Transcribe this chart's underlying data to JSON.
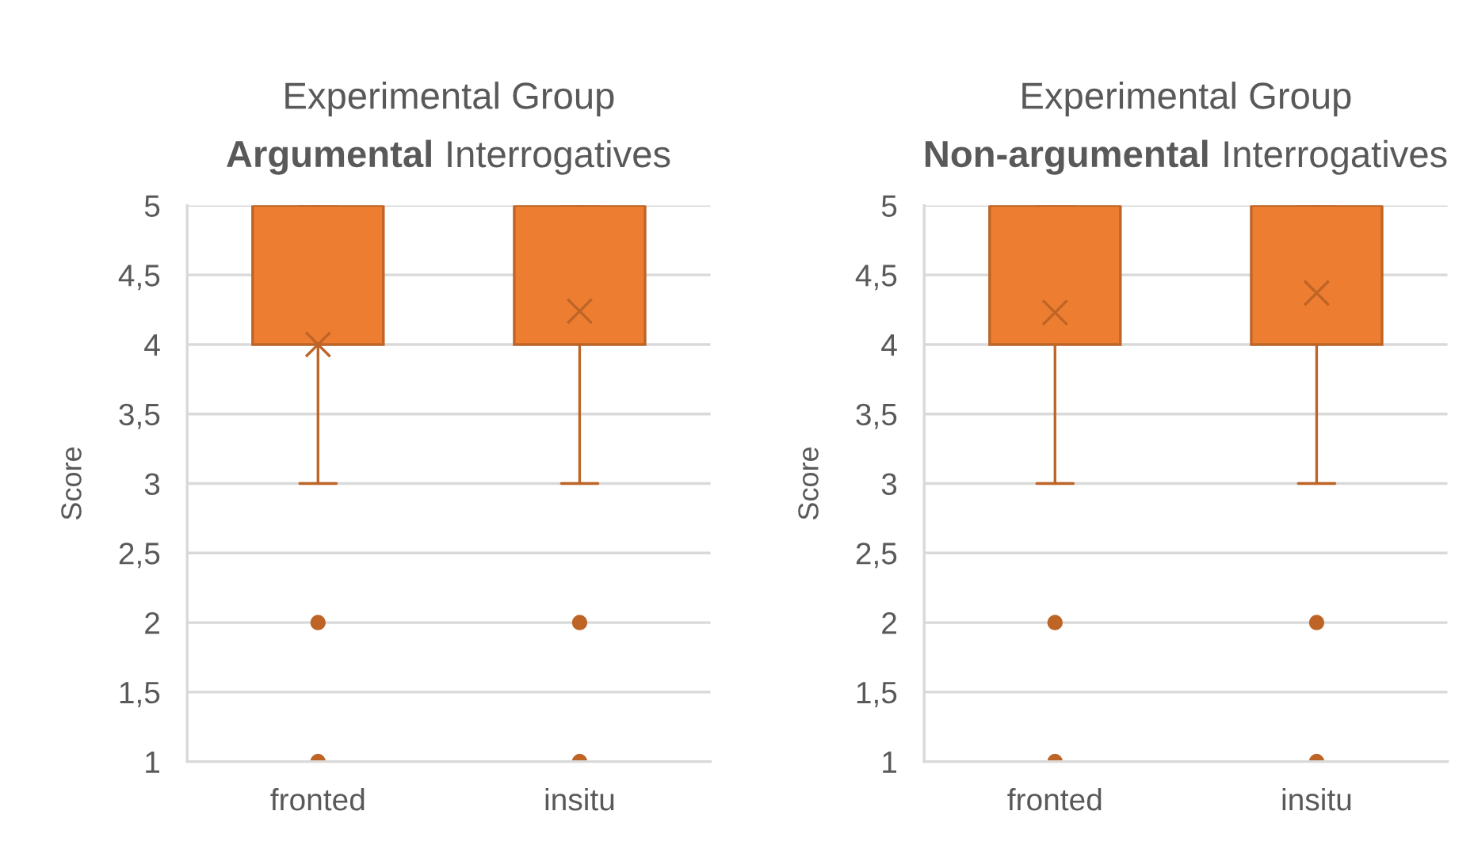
{
  "chart_data": [
    {
      "type": "box",
      "title": "Experimental Group",
      "subtitle": "Argumental Interrogatives",
      "ylabel": "Score",
      "categories": [
        "fronted",
        "insitu"
      ],
      "color": "#ed7d31",
      "boxes": [
        {
          "low": 3,
          "q1": 4,
          "median": 5,
          "q3": 5,
          "high": 5,
          "mean": 4.0,
          "outliers": [
            2,
            1
          ]
        },
        {
          "low": 3,
          "q1": 4,
          "median": 5,
          "q3": 5,
          "high": 5,
          "mean": 4.24,
          "outliers": [
            2,
            1
          ]
        }
      ],
      "ylim": [
        1,
        5
      ],
      "yticks": [
        1,
        {
          "value": 1.5,
          "label": "1,5"
        },
        2,
        {
          "value": 2.5,
          "label": "2,5"
        },
        3,
        {
          "value": 3.5,
          "label": "3,5"
        },
        4,
        {
          "value": 4.5,
          "label": "4,5"
        },
        5
      ],
      "grid": "y",
      "marker": "circle"
    },
    {
      "type": "box",
      "title": "Experimental Group",
      "subtitle": "Non-argumental Interrogatives",
      "ylabel": "Score",
      "categories": [
        "fronted",
        "insitu"
      ],
      "color": "#ed7d31",
      "boxes": [
        {
          "low": 3,
          "q1": 4,
          "median": 5,
          "q3": 5,
          "high": 5,
          "mean": 4.23,
          "outliers": [
            2,
            1
          ]
        },
        {
          "low": 3,
          "q1": 4,
          "median": 5,
          "q3": 5,
          "high": 5,
          "mean": 4.37,
          "outliers": [
            2,
            1
          ]
        }
      ],
      "ylim": [
        1,
        5
      ],
      "yticks": [
        1,
        {
          "value": 1.5,
          "label": "1,5"
        },
        2,
        {
          "value": 2.5,
          "label": "2,5"
        },
        3,
        {
          "value": 3.5,
          "label": "3,5"
        },
        4,
        {
          "value": 4.5,
          "label": "4,5"
        },
        5
      ],
      "grid": "y",
      "marker": "circle"
    }
  ]
}
